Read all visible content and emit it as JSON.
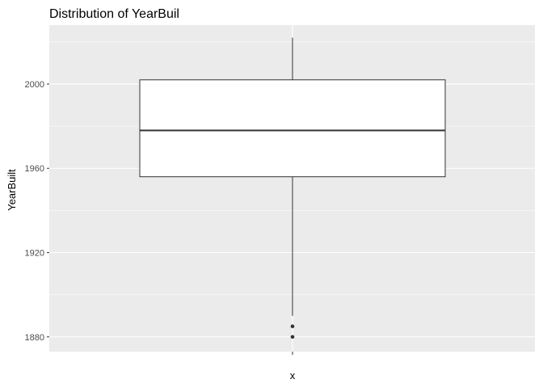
{
  "chart_data": {
    "type": "boxplot",
    "title": "Distribution of YearBuil",
    "xlabel": "x",
    "ylabel": "YearBuilt",
    "ylim": [
      1873,
      2028
    ],
    "yticks": [
      1880,
      1920,
      1960,
      2000
    ],
    "y_tick_labels": [
      "1880",
      "1920",
      "1960",
      "2000"
    ],
    "grid": true,
    "legend": "none",
    "box": {
      "min": 1890,
      "q1": 1956,
      "median": 1978,
      "q3": 2002,
      "max": 2022
    },
    "outliers": [
      1880,
      1885
    ],
    "colors": {
      "panel_background": "#ebebeb",
      "grid": "#ffffff",
      "box_fill": "#ffffff",
      "box_line": "#333333",
      "outlier": "#333333",
      "tick_label": "#4d4d4d"
    }
  }
}
